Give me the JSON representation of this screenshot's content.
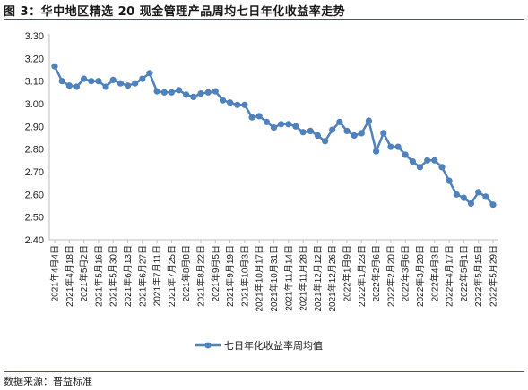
{
  "figure": {
    "title": "图 3：华中地区精选 20 现金管理产品周均七日年化收益率走势",
    "source": "数据来源：普益标准"
  },
  "colors": {
    "series": "#4f81bd",
    "axis": "#bfbfbf",
    "rule": "#8a3b3b"
  },
  "chart_data": {
    "type": "line",
    "title": "",
    "xlabel": "",
    "ylabel": "",
    "ylim": [
      2.4,
      3.3
    ],
    "yticks": [
      2.4,
      2.5,
      2.6,
      2.7,
      2.8,
      2.9,
      3.0,
      3.1,
      3.2,
      3.3
    ],
    "ytick_labels": [
      "2.40",
      "2.50",
      "2.60",
      "2.70",
      "2.80",
      "2.90",
      "3.00",
      "3.10",
      "3.20",
      "3.30"
    ],
    "grid": false,
    "legend": "bottom",
    "x_tick_labels": [
      "2021年4月4日",
      "2021年4月18日",
      "2021年5月2日",
      "2021年5月16日",
      "2021年5月30日",
      "2021年6月13日",
      "2021年6月27日",
      "2021年7月11日",
      "2021年7月25日",
      "2021年8月8日",
      "2021年8月22日",
      "2021年9月5日",
      "2021年9月19日",
      "2021年10月3日",
      "2021年10月17日",
      "2021年10月31日",
      "2021年11月14日",
      "2021年11月28日",
      "2021年12月12日",
      "2021年12月26日",
      "2022年1月9日",
      "2022年1月23日",
      "2022年2月6日",
      "2022年2月20日",
      "2022年3月6日",
      "2022年3月20日",
      "2022年4月3日",
      "2022年4月17日",
      "2022年5月1日",
      "2022年5月15日",
      "2022年5月29日"
    ],
    "series": [
      {
        "name": "七日年化收益率周均值",
        "values": [
          3.165,
          3.1,
          3.08,
          3.075,
          3.11,
          3.1,
          3.1,
          3.075,
          3.105,
          3.09,
          3.08,
          3.09,
          3.11,
          3.135,
          3.055,
          3.05,
          3.05,
          3.06,
          3.04,
          3.03,
          3.045,
          3.05,
          3.055,
          3.015,
          3.005,
          2.995,
          2.995,
          2.94,
          2.945,
          2.92,
          2.895,
          2.91,
          2.91,
          2.9,
          2.875,
          2.88,
          2.86,
          2.835,
          2.885,
          2.92,
          2.88,
          2.86,
          2.87,
          2.925,
          2.79,
          2.87,
          2.81,
          2.81,
          2.775,
          2.745,
          2.72,
          2.75,
          2.75,
          2.72,
          2.66,
          2.6,
          2.585,
          2.56,
          2.61,
          2.59,
          2.555
        ]
      }
    ]
  }
}
